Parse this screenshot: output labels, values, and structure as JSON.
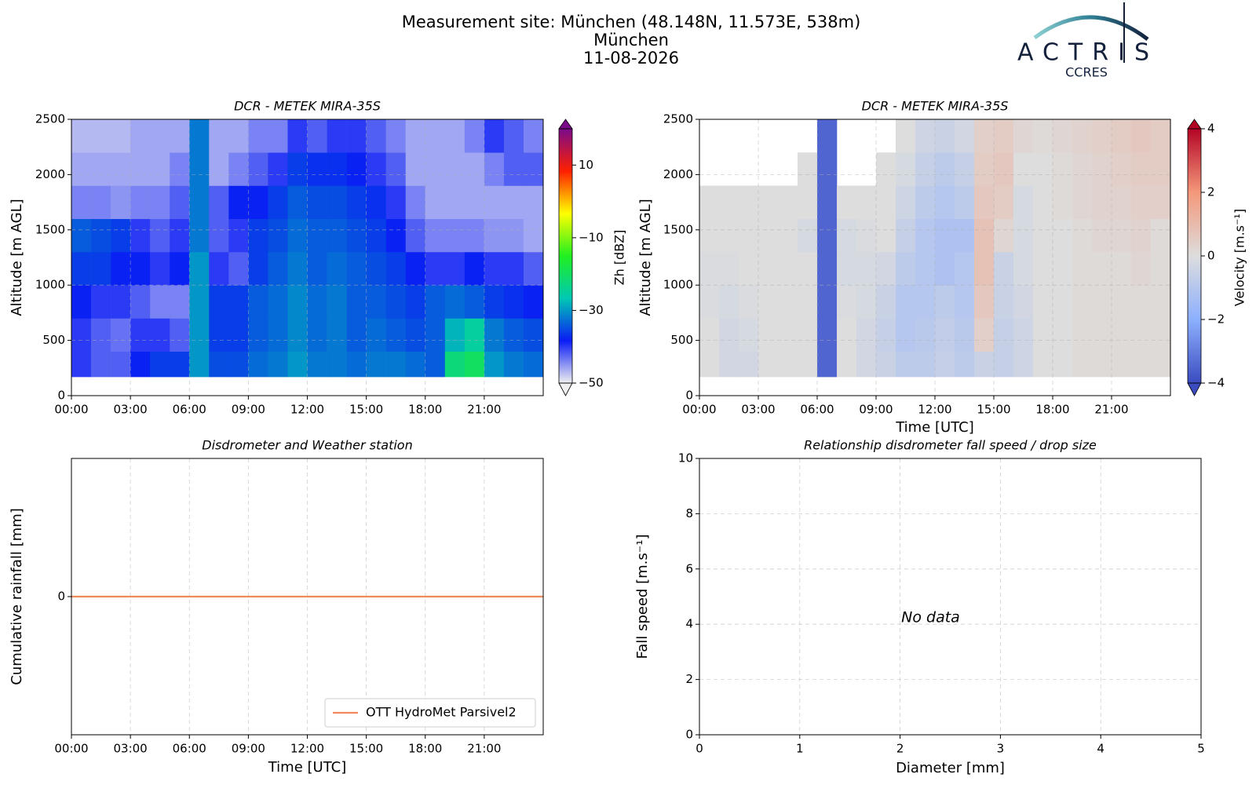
{
  "header": {
    "title_lines": [
      "Measurement site: München (48.148N, 11.573E, 538m)",
      "München",
      "11-08-2026"
    ],
    "logo": {
      "name": "ACTRIS",
      "subtitle": "CCRES"
    }
  },
  "chart_data": [
    {
      "type": "heatmap",
      "title": "DCR - METEK MIRA-35S",
      "ylabel": "Altitude [m AGL]",
      "xlim": [
        0,
        24
      ],
      "xticks": [
        {
          "value": 0,
          "label": "00:00"
        },
        {
          "value": 3,
          "label": "03:00"
        },
        {
          "value": 6,
          "label": "06:00"
        },
        {
          "value": 9,
          "label": "09:00"
        },
        {
          "value": 12,
          "label": "12:00"
        },
        {
          "value": 15,
          "label": "15:00"
        },
        {
          "value": 18,
          "label": "18:00"
        },
        {
          "value": 21,
          "label": "21:00"
        }
      ],
      "ylim": [
        0,
        2500
      ],
      "yticks": [
        0,
        500,
        1000,
        1500,
        2000,
        2500
      ],
      "grid": true,
      "xbins": [
        0,
        1,
        2,
        3,
        4,
        5,
        6,
        7,
        8,
        9,
        10,
        11,
        12,
        13,
        14,
        15,
        16,
        17,
        18,
        19,
        20,
        21,
        22,
        23,
        24
      ],
      "ybins": [
        170,
        400,
        700,
        1000,
        1300,
        1600,
        1900,
        2200,
        2500
      ],
      "values": [
        [
          -40,
          -42,
          -42,
          -38,
          -36,
          -36,
          -30,
          -35,
          -35,
          -33,
          -32,
          -30,
          -32,
          -32,
          -33,
          -32,
          -32,
          -33,
          -34,
          -22,
          -20,
          -30,
          -32,
          -33
        ],
        [
          -40,
          -42,
          -43,
          -40,
          -40,
          -42,
          -30,
          -36,
          -36,
          -34,
          -33,
          -31,
          -33,
          -32,
          -34,
          -33,
          -34,
          -35,
          -34,
          -28,
          -25,
          -32,
          -34,
          -35
        ],
        [
          -38,
          -40,
          -40,
          -42,
          -44,
          -44,
          -30,
          -36,
          -36,
          -34,
          -33,
          -31,
          -33,
          -32,
          -34,
          -34,
          -35,
          -36,
          -34,
          -33,
          -34,
          -36,
          -37,
          -38
        ],
        [
          -36,
          -36,
          -38,
          -38,
          -40,
          -38,
          -30,
          -40,
          -42,
          -36,
          -34,
          -32,
          -34,
          -33,
          -34,
          -35,
          -36,
          -38,
          -40,
          -40,
          -38,
          -40,
          -40,
          -42
        ],
        [
          -34,
          -35,
          -36,
          -40,
          -42,
          -40,
          -32,
          -42,
          -40,
          -36,
          -35,
          -33,
          -34,
          -34,
          -35,
          -36,
          -38,
          -42,
          -44,
          -44,
          -44,
          -45,
          -45,
          -46
        ],
        [
          -44,
          -44,
          -45,
          -44,
          -44,
          -42,
          -32,
          -42,
          -38,
          -38,
          -36,
          -34,
          -35,
          -35,
          -36,
          -37,
          -40,
          -44,
          -46,
          -46,
          -46,
          -46,
          -46,
          -46
        ],
        [
          -46,
          -46,
          -46,
          -46,
          -46,
          -44,
          -32,
          -46,
          -44,
          -42,
          -40,
          -36,
          -37,
          -37,
          -38,
          -40,
          -42,
          -46,
          -46,
          -46,
          -46,
          -44,
          -42,
          -42
        ],
        [
          -47,
          -47,
          -47,
          -46,
          -46,
          -46,
          -32,
          -46,
          -46,
          -44,
          -44,
          -40,
          -42,
          -40,
          -40,
          -42,
          -44,
          -46,
          -46,
          -46,
          -44,
          -40,
          -42,
          -44
        ]
      ],
      "colorbar": {
        "label": "Zh [dBZ]",
        "lim": [
          -50,
          20
        ],
        "ticks": [
          {
            "value": -50,
            "label": "−50"
          },
          {
            "value": -30,
            "label": "−30"
          },
          {
            "value": -10,
            "label": "−10"
          },
          10
        ],
        "colormap": [
          "#f0f0f0",
          "#0a1cf5",
          "#00c8b4",
          "#20f020",
          "#ffff00",
          "#ff2000",
          "#7a0a8a"
        ]
      }
    },
    {
      "type": "heatmap",
      "title": "DCR - METEK MIRA-35S",
      "ylabel": "Altitude [m AGL]",
      "xlabel": "Time [UTC]",
      "xlim": [
        0,
        24
      ],
      "xticks": [
        {
          "value": 0,
          "label": "00:00"
        },
        {
          "value": 3,
          "label": "03:00"
        },
        {
          "value": 6,
          "label": "06:00"
        },
        {
          "value": 9,
          "label": "09:00"
        },
        {
          "value": 12,
          "label": "12:00"
        },
        {
          "value": 15,
          "label": "15:00"
        },
        {
          "value": 18,
          "label": "18:00"
        },
        {
          "value": 21,
          "label": "21:00"
        }
      ],
      "ylim": [
        0,
        2500
      ],
      "yticks": [
        0,
        500,
        1000,
        1500,
        2000,
        2500
      ],
      "grid": true,
      "xbins": [
        0,
        1,
        2,
        3,
        4,
        5,
        6,
        7,
        8,
        9,
        10,
        11,
        12,
        13,
        14,
        15,
        16,
        17,
        18,
        19,
        20,
        21,
        22,
        23,
        24
      ],
      "ybins": [
        170,
        400,
        700,
        1000,
        1300,
        1600,
        1900,
        2200,
        2500
      ],
      "values": [
        [
          0,
          -0.3,
          -0.3,
          0,
          0,
          0,
          -3.5,
          0,
          -0.3,
          -0.5,
          -0.8,
          -0.8,
          -0.6,
          -0.8,
          -0.5,
          -0.6,
          -0.4,
          0,
          0,
          0.1,
          0.1,
          0.1,
          0.1,
          0.1
        ],
        [
          0,
          -0.3,
          -0.2,
          0,
          0,
          0,
          -3.5,
          0,
          -0.3,
          -0.6,
          -1,
          -0.9,
          -0.7,
          -0.9,
          0.4,
          -0.6,
          -0.4,
          0,
          0,
          0.1,
          0.1,
          0.1,
          0.1,
          0.1
        ],
        [
          -0.1,
          -0.2,
          -0.1,
          0,
          0,
          0,
          -3.5,
          -0.1,
          -0.2,
          -0.5,
          -1,
          -1,
          -0.8,
          -1,
          0.6,
          -0.5,
          -0.3,
          0,
          0,
          0.1,
          0.1,
          0.1,
          0.1,
          0.1
        ],
        [
          -0.1,
          -0.1,
          0,
          0,
          0,
          0,
          -3.5,
          -0.2,
          -0.2,
          -0.3,
          -0.8,
          -1,
          -1.2,
          -1,
          0.8,
          -0.5,
          -0.2,
          0,
          0,
          0.1,
          0.1,
          0.1,
          0.2,
          0.1
        ],
        [
          0,
          0,
          0,
          0,
          0,
          -0.2,
          -3.5,
          -0.2,
          -0.1,
          0,
          -0.6,
          -1,
          -1.2,
          -1.2,
          0.8,
          0.2,
          -0.2,
          0,
          0,
          0.1,
          0.2,
          0.2,
          0.3,
          0.1
        ],
        [
          0,
          0,
          0,
          0,
          0,
          0,
          -3.5,
          0,
          0,
          0,
          -0.4,
          -0.8,
          -1,
          -0.8,
          0.6,
          0.5,
          -0.2,
          0,
          0.1,
          0.2,
          0.3,
          0.3,
          0.4,
          0.4
        ],
        [
          null,
          null,
          null,
          null,
          null,
          0,
          -3.5,
          null,
          null,
          0,
          -0.2,
          -0.6,
          -0.8,
          -0.6,
          0.5,
          0.6,
          0,
          0,
          0.1,
          0.2,
          0.3,
          0.4,
          0.5,
          0.5
        ],
        [
          null,
          null,
          null,
          null,
          null,
          null,
          -3.5,
          null,
          null,
          null,
          0,
          -0.4,
          -0.5,
          -0.3,
          0.4,
          0.5,
          0.2,
          0.1,
          0.2,
          0.3,
          0.4,
          0.5,
          0.6,
          0.5
        ]
      ],
      "colorbar": {
        "label": "Velocity [m.s⁻¹]",
        "lim": [
          -4,
          4
        ],
        "ticks": [
          {
            "value": -4,
            "label": "−4"
          },
          {
            "value": -2,
            "label": "−2"
          },
          0,
          2,
          4
        ],
        "colormap": [
          "#3b4cc0",
          "#8db0fe",
          "#dddddd",
          "#f4987a",
          "#b40426"
        ]
      }
    },
    {
      "type": "line",
      "title": "Disdrometer and Weather station",
      "xlabel": "Time [UTC]",
      "ylabel": "Cumulative rainfall [mm]",
      "x": [
        0,
        24
      ],
      "series": [
        {
          "name": "OTT HydroMet Parsivel2",
          "color": "#f08a5c",
          "values": [
            0,
            0
          ]
        }
      ],
      "xlim": [
        0,
        24
      ],
      "xticks": [
        {
          "value": 0,
          "label": "00:00"
        },
        {
          "value": 3,
          "label": "03:00"
        },
        {
          "value": 6,
          "label": "06:00"
        },
        {
          "value": 9,
          "label": "09:00"
        },
        {
          "value": 12,
          "label": "12:00"
        },
        {
          "value": 15,
          "label": "15:00"
        },
        {
          "value": 18,
          "label": "18:00"
        },
        {
          "value": 21,
          "label": "21:00"
        }
      ],
      "ylim": [
        -0.055,
        0.055
      ],
      "yticks": [
        0
      ],
      "grid": true,
      "legend": "lower right"
    },
    {
      "type": "scatter",
      "title": "Relationship disdrometer fall speed / drop size",
      "xlabel": "Diameter [mm]",
      "ylabel": "Fall speed [m.s⁻¹]",
      "xlim": [
        0,
        5
      ],
      "ylim": [
        0,
        10
      ],
      "xticks": [
        0,
        1,
        2,
        3,
        4,
        5
      ],
      "yticks": [
        0,
        2,
        4,
        6,
        8,
        10
      ],
      "grid": true,
      "annotation": "No data"
    }
  ]
}
